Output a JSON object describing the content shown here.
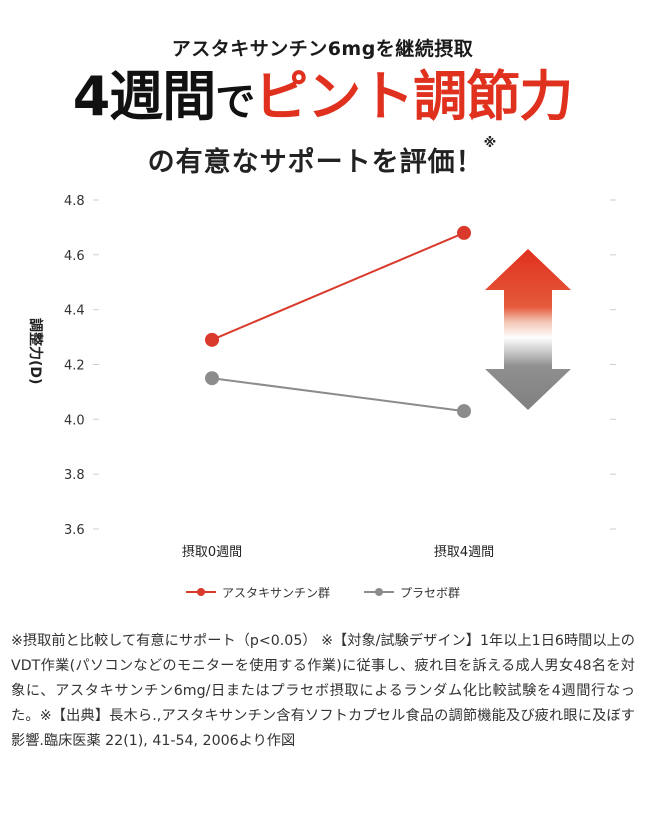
{
  "headline": {
    "subtitle": "アスタキサンチン6mgを継続摂取",
    "main_part1": "4週間",
    "main_part2": "で",
    "main_part3": "ピント調節力",
    "tail": "の有意なサポートを評価！",
    "tail_mark": "※"
  },
  "colors": {
    "accent_red": "#e0301e",
    "series_red": "#d93a2b",
    "series_gray": "#8c8c8c",
    "arrow_gray": "#888888"
  },
  "chart_data": {
    "type": "line",
    "categories": [
      "摂取0週間",
      "摂取4週間"
    ],
    "series": [
      {
        "name": "アスタキサンチン群",
        "values": [
          4.29,
          4.68
        ],
        "color": "#d93a2b"
      },
      {
        "name": "プラセボ群",
        "values": [
          4.15,
          4.03
        ],
        "color": "#8c8c8c"
      }
    ],
    "ylabel": "調整力(D)",
    "ylim": [
      3.6,
      4.8
    ],
    "yticks": [
      "4.8",
      "4.6",
      "4.4",
      "4.2",
      "4.0",
      "3.8",
      "3.6"
    ],
    "grid": false,
    "legend_position": "bottom",
    "annotation": "red up arrow / gray down arrow"
  },
  "footnote": "※摂取前と比較して有意にサポート（p<0.05） ※【対象/試験デザイン】1年以上1日6時間以上のVDT作業(パソコンなどのモニターを使用する作業)に従事し、疲れ目を訴える成人男女48名を対象に、アスタキサンチン6mg/日またはプラセボ摂取によるランダム化比較試験を4週間行なった。※【出典】長木ら.,アスタキサンチン含有ソフトカプセル食品の調節機能及び疲れ眼に及ぼす影響.臨床医薬 22(1), 41-54, 2006より作図"
}
